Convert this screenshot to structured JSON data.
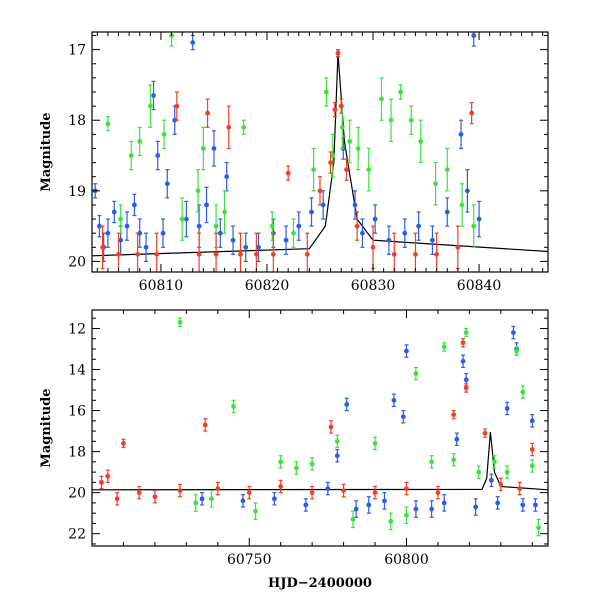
{
  "chart_data": [
    {
      "panel": "top",
      "type": "scatter",
      "ylabel": "Magnitude",
      "xlabel": "",
      "xlim": [
        60803.5,
        60846.5
      ],
      "ylim": [
        20.15,
        16.75
      ],
      "y_inverted": true,
      "xticks": [
        60810,
        60820,
        60830,
        60840
      ],
      "yticks": [
        17,
        18,
        19,
        20
      ],
      "series": [
        {
          "color": "#2a5ee8",
          "points": [
            [
              60803.8,
              19.0,
              0.1
            ],
            [
              60804.2,
              19.5,
              0.15
            ],
            [
              60804.6,
              19.8,
              0.2
            ],
            [
              60805.0,
              19.6,
              0.2
            ],
            [
              60805.6,
              19.3,
              0.15
            ],
            [
              60806.2,
              19.7,
              0.2
            ],
            [
              60806.8,
              19.5,
              0.2
            ],
            [
              60807.5,
              19.2,
              0.15
            ],
            [
              60808.0,
              19.6,
              0.2
            ],
            [
              60808.6,
              19.8,
              0.2
            ],
            [
              60809.3,
              17.65,
              0.2
            ],
            [
              60809.7,
              18.5,
              0.2
            ],
            [
              60810.2,
              19.6,
              0.2
            ],
            [
              60810.6,
              18.9,
              0.2
            ],
            [
              60811.3,
              18.0,
              0.2
            ],
            [
              60812.4,
              19.4,
              0.25
            ],
            [
              60813.0,
              16.9,
              0.1
            ],
            [
              60813.6,
              19.5,
              0.3
            ],
            [
              60814.3,
              19.2,
              0.25
            ],
            [
              60815.0,
              18.4,
              0.25
            ],
            [
              60815.6,
              19.6,
              0.2
            ],
            [
              60816.2,
              18.8,
              0.2
            ],
            [
              60816.8,
              19.7,
              0.2
            ],
            [
              60818.0,
              19.8,
              0.2
            ],
            [
              60819.2,
              19.8,
              0.2
            ],
            [
              60820.6,
              19.6,
              0.2
            ],
            [
              60821.8,
              19.7,
              0.2
            ],
            [
              60823.0,
              19.5,
              0.2
            ],
            [
              60824.2,
              19.3,
              0.2
            ],
            [
              60825.3,
              19.2,
              0.2
            ],
            [
              60826.7,
              17.05,
              0.05
            ],
            [
              60827.2,
              18.4,
              0.15
            ],
            [
              60828.3,
              19.2,
              0.2
            ],
            [
              60829.0,
              19.6,
              0.2
            ],
            [
              60830.2,
              19.4,
              0.2
            ],
            [
              60831.5,
              19.7,
              0.2
            ],
            [
              60833.0,
              19.6,
              0.2
            ],
            [
              60834.3,
              19.5,
              0.2
            ],
            [
              60835.6,
              19.7,
              0.2
            ],
            [
              60837.0,
              19.3,
              0.2
            ],
            [
              60838.3,
              18.2,
              0.2
            ],
            [
              60838.9,
              19.0,
              0.3
            ],
            [
              60839.5,
              16.8,
              0.15
            ],
            [
              60840.0,
              19.4,
              0.25
            ]
          ]
        },
        {
          "color": "#40e040",
          "points": [
            [
              60805.0,
              18.05,
              0.1
            ],
            [
              60806.2,
              19.4,
              0.2
            ],
            [
              60807.2,
              18.5,
              0.2
            ],
            [
              60808.0,
              18.3,
              0.2
            ],
            [
              60809.0,
              17.8,
              0.3
            ],
            [
              60810.3,
              18.2,
              0.2
            ],
            [
              60811.0,
              16.8,
              0.15
            ],
            [
              60812.0,
              19.4,
              0.3
            ],
            [
              60813.5,
              19.0,
              0.3
            ],
            [
              60814.0,
              18.4,
              0.3
            ],
            [
              60815.2,
              19.5,
              0.3
            ],
            [
              60816.0,
              19.3,
              0.3
            ],
            [
              60817.8,
              18.1,
              0.1
            ],
            [
              60820.5,
              19.5,
              0.2
            ],
            [
              60822.5,
              19.6,
              0.2
            ],
            [
              60824.4,
              18.7,
              0.3
            ],
            [
              60825.6,
              17.6,
              0.2
            ],
            [
              60826.2,
              18.5,
              0.3
            ],
            [
              60827.1,
              18.1,
              0.3
            ],
            [
              60827.8,
              18.3,
              0.3
            ],
            [
              60828.6,
              18.4,
              0.3
            ],
            [
              60829.6,
              18.7,
              0.3
            ],
            [
              60830.8,
              17.7,
              0.3
            ],
            [
              60831.7,
              18.0,
              0.3
            ],
            [
              60832.6,
              17.6,
              0.1
            ],
            [
              60833.6,
              18.0,
              0.2
            ],
            [
              60834.5,
              18.3,
              0.3
            ],
            [
              60835.9,
              18.9,
              0.3
            ],
            [
              60837.0,
              18.7,
              0.3
            ],
            [
              60838.4,
              19.2,
              0.3
            ],
            [
              60839.5,
              19.5,
              0.3
            ]
          ]
        },
        {
          "color": "#f04028",
          "points": [
            [
              60804.5,
              19.8,
              0.3
            ],
            [
              60806.0,
              19.9,
              0.3
            ],
            [
              60807.8,
              19.9,
              0.3
            ],
            [
              60809.6,
              19.9,
              0.3
            ],
            [
              60811.5,
              17.8,
              0.2
            ],
            [
              60813.6,
              19.9,
              0.3
            ],
            [
              60814.4,
              17.9,
              0.2
            ],
            [
              60815.2,
              19.9,
              0.3
            ],
            [
              60816.4,
              18.1,
              0.3
            ],
            [
              60817.5,
              19.9,
              0.3
            ],
            [
              60819.0,
              19.9,
              0.3
            ],
            [
              60820.6,
              19.9,
              0.3
            ],
            [
              60822.0,
              18.75,
              0.1
            ],
            [
              60823.8,
              19.9,
              0.3
            ],
            [
              60825.0,
              19.0,
              0.2
            ],
            [
              60826.0,
              18.6,
              0.15
            ],
            [
              60826.4,
              17.85,
              0.1
            ],
            [
              60826.7,
              17.05,
              0.05
            ],
            [
              60827.0,
              17.8,
              0.1
            ],
            [
              60827.5,
              18.7,
              0.15
            ],
            [
              60828.5,
              19.5,
              0.2
            ],
            [
              60830.0,
              19.8,
              0.3
            ],
            [
              60832.0,
              19.9,
              0.3
            ],
            [
              60834.0,
              19.9,
              0.3
            ],
            [
              60836.0,
              19.9,
              0.3
            ],
            [
              60838.0,
              19.8,
              0.3
            ],
            [
              60839.3,
              17.9,
              0.15
            ]
          ]
        }
      ],
      "model_curve": {
        "color": "#000000",
        "points": [
          [
            60803.5,
            19.92
          ],
          [
            60824.0,
            19.82
          ],
          [
            60825.5,
            19.5
          ],
          [
            60826.3,
            18.6
          ],
          [
            60826.7,
            17.05
          ],
          [
            60827.3,
            18.3
          ],
          [
            60828.5,
            19.4
          ],
          [
            60830.0,
            19.7
          ],
          [
            60846.5,
            19.86
          ]
        ]
      }
    },
    {
      "panel": "bottom",
      "type": "scatter",
      "ylabel": "Magnitude",
      "xlabel": "HJD−2400000",
      "xlim": [
        60700,
        60845
      ],
      "ylim": [
        22.6,
        11.1
      ],
      "y_inverted": true,
      "xticks": [
        60750,
        60800
      ],
      "yticks": [
        12,
        14,
        16,
        18,
        20,
        22
      ],
      "series": [
        {
          "color": "#2a5ee8",
          "points": [
            [
              60735,
              20.3,
              0.3
            ],
            [
              60748,
              20.4,
              0.3
            ],
            [
              60758,
              20.3,
              0.3
            ],
            [
              60768,
              20.6,
              0.3
            ],
            [
              60775,
              19.8,
              0.3
            ],
            [
              60778,
              18.2,
              0.3
            ],
            [
              60781,
              15.7,
              0.3
            ],
            [
              60784,
              20.8,
              0.4
            ],
            [
              60788,
              20.6,
              0.4
            ],
            [
              60793,
              20.4,
              0.4
            ],
            [
              60796,
              15.5,
              0.3
            ],
            [
              60799,
              16.3,
              0.3
            ],
            [
              60800,
              13.1,
              0.3
            ],
            [
              60803,
              20.8,
              0.4
            ],
            [
              60808,
              20.8,
              0.4
            ],
            [
              60812,
              20.5,
              0.4
            ],
            [
              60816,
              17.4,
              0.3
            ],
            [
              60818,
              13.6,
              0.3
            ],
            [
              60819,
              14.5,
              0.3
            ],
            [
              60822,
              20.7,
              0.4
            ],
            [
              60827,
              19.4,
              0.3
            ],
            [
              60829,
              20.5,
              0.3
            ],
            [
              60832,
              15.9,
              0.3
            ],
            [
              60834,
              12.2,
              0.3
            ],
            [
              60835,
              13.0,
              0.3
            ],
            [
              60837,
              20.6,
              0.3
            ],
            [
              60840,
              16.5,
              0.3
            ],
            [
              60841,
              20.6,
              0.3
            ]
          ]
        },
        {
          "color": "#40e040",
          "points": [
            [
              60728,
              11.7,
              0.2
            ],
            [
              60733,
              20.5,
              0.4
            ],
            [
              60738,
              20.3,
              0.4
            ],
            [
              60745,
              15.8,
              0.3
            ],
            [
              60752,
              20.9,
              0.4
            ],
            [
              60760,
              18.5,
              0.3
            ],
            [
              60765,
              18.8,
              0.3
            ],
            [
              60770,
              18.6,
              0.3
            ],
            [
              60778,
              17.5,
              0.3
            ],
            [
              60783,
              21.3,
              0.4
            ],
            [
              60790,
              17.6,
              0.3
            ],
            [
              60795,
              21.4,
              0.4
            ],
            [
              60800,
              21.1,
              0.4
            ],
            [
              60803,
              14.2,
              0.3
            ],
            [
              60808,
              18.5,
              0.3
            ],
            [
              60812,
              12.9,
              0.2
            ],
            [
              60815,
              18.4,
              0.3
            ],
            [
              60819,
              12.2,
              0.2
            ],
            [
              60823,
              19.0,
              0.3
            ],
            [
              60828,
              18.5,
              0.3
            ],
            [
              60832,
              19.0,
              0.3
            ],
            [
              60835,
              13.1,
              0.2
            ],
            [
              60837,
              15.1,
              0.3
            ],
            [
              60840,
              18.7,
              0.3
            ],
            [
              60842,
              21.7,
              0.4
            ]
          ]
        },
        {
          "color": "#f04028",
          "points": [
            [
              60703,
              19.5,
              0.3
            ],
            [
              60705,
              19.2,
              0.3
            ],
            [
              60708,
              20.3,
              0.3
            ],
            [
              60710,
              17.6,
              0.2
            ],
            [
              60715,
              20.0,
              0.3
            ],
            [
              60720,
              20.2,
              0.3
            ],
            [
              60728,
              19.9,
              0.3
            ],
            [
              60736,
              16.7,
              0.3
            ],
            [
              60740,
              19.8,
              0.3
            ],
            [
              60750,
              20.0,
              0.3
            ],
            [
              60760,
              19.7,
              0.3
            ],
            [
              60770,
              20.0,
              0.3
            ],
            [
              60776,
              16.8,
              0.3
            ],
            [
              60780,
              19.9,
              0.3
            ],
            [
              60790,
              20.0,
              0.3
            ],
            [
              60800,
              19.8,
              0.3
            ],
            [
              60810,
              20.0,
              0.3
            ],
            [
              60815,
              16.2,
              0.2
            ],
            [
              60818,
              12.7,
              0.2
            ],
            [
              60819,
              14.9,
              0.2
            ],
            [
              60825,
              17.1,
              0.2
            ],
            [
              60830,
              19.6,
              0.3
            ],
            [
              60836,
              19.8,
              0.3
            ],
            [
              60840,
              17.9,
              0.3
            ]
          ]
        }
      ],
      "model_curve": {
        "color": "#000000",
        "points": [
          [
            60700,
            19.86
          ],
          [
            60824,
            19.84
          ],
          [
            60825.5,
            19.3
          ],
          [
            60826.7,
            17.05
          ],
          [
            60828,
            19.0
          ],
          [
            60830,
            19.7
          ],
          [
            60845,
            19.86
          ]
        ]
      }
    }
  ]
}
